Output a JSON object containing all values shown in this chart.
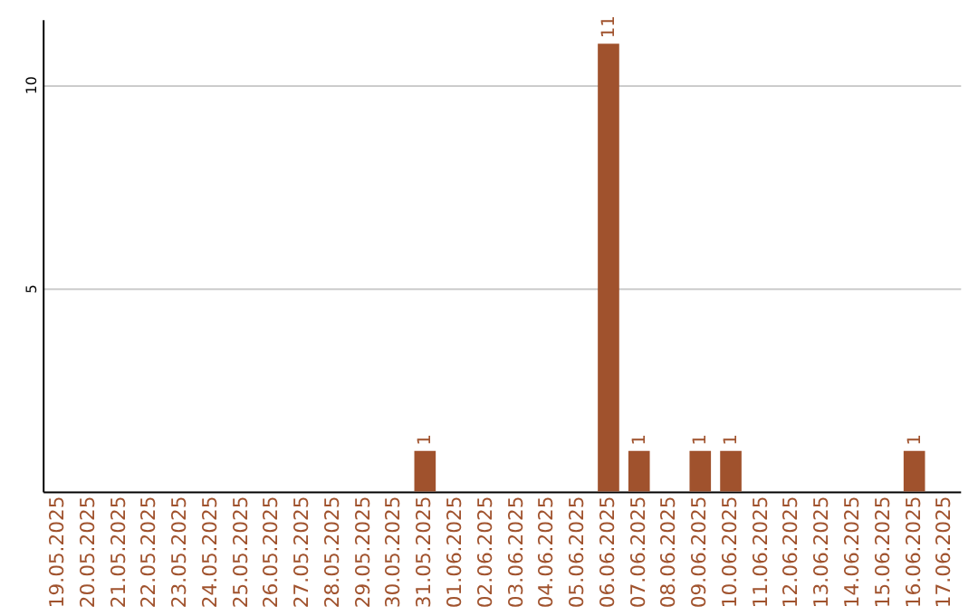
{
  "chart_data": {
    "type": "bar",
    "categories": [
      "19.05.2025",
      "20.05.2025",
      "21.05.2025",
      "22.05.2025",
      "23.05.2025",
      "24.05.2025",
      "25.05.2025",
      "26.05.2025",
      "27.05.2025",
      "28.05.2025",
      "29.05.2025",
      "30.05.2025",
      "31.05.2025",
      "01.06.2025",
      "02.06.2025",
      "03.06.2025",
      "04.06.2025",
      "05.06.2025",
      "06.06.2025",
      "07.06.2025",
      "08.06.2025",
      "09.06.2025",
      "10.06.2025",
      "11.06.2025",
      "12.06.2025",
      "13.06.2025",
      "14.06.2025",
      "15.06.2025",
      "16.06.2025",
      "17.06.2025"
    ],
    "values": [
      0,
      0,
      0,
      0,
      0,
      0,
      0,
      0,
      0,
      0,
      0,
      0,
      1,
      0,
      0,
      0,
      0,
      0,
      11,
      1,
      0,
      1,
      1,
      0,
      0,
      0,
      0,
      0,
      1,
      0
    ],
    "value_labels": [
      null,
      null,
      null,
      null,
      null,
      null,
      null,
      null,
      null,
      null,
      null,
      null,
      "1",
      null,
      null,
      null,
      null,
      null,
      "11",
      "1",
      null,
      "1",
      "1",
      null,
      null,
      null,
      null,
      null,
      "1",
      null
    ],
    "color": "#a0522d",
    "ylim": [
      0,
      11.6
    ],
    "yticks": [
      5,
      10
    ],
    "grid": "y"
  }
}
